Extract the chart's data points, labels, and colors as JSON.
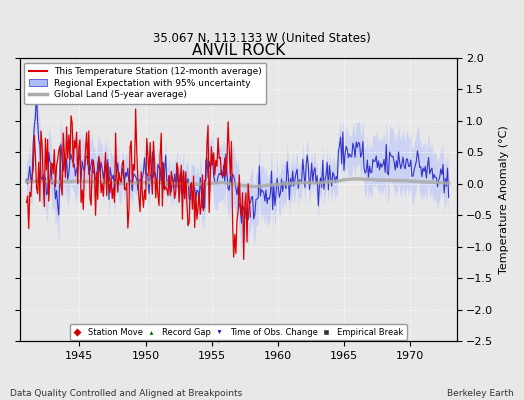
{
  "title": "ANVIL ROCK",
  "subtitle": "35.067 N, 113.133 W (United States)",
  "ylabel": "Temperature Anomaly (°C)",
  "xlabel_left": "Data Quality Controlled and Aligned at Breakpoints",
  "xlabel_right": "Berkeley Earth",
  "ylim": [
    -2.5,
    2.0
  ],
  "yticks": [
    -2.5,
    -2,
    -1.5,
    -1,
    -0.5,
    0,
    0.5,
    1,
    1.5,
    2
  ],
  "xlim": [
    1940.5,
    1973.5
  ],
  "xticks": [
    1945,
    1950,
    1955,
    1960,
    1965,
    1970
  ],
  "bg_color": "#e8e8e8",
  "plot_bg_color": "#e8e8e8",
  "legend_labels": [
    "This Temperature Station (12-month average)",
    "Regional Expectation with 95% uncertainty",
    "Global Land (5-year average)"
  ],
  "legend_colors": [
    "#ff0000",
    "#5555ff",
    "#aaaaaa"
  ],
  "obs_change_year": 1955.5,
  "time_obs_change_color": "#0000cc",
  "seed": 42
}
